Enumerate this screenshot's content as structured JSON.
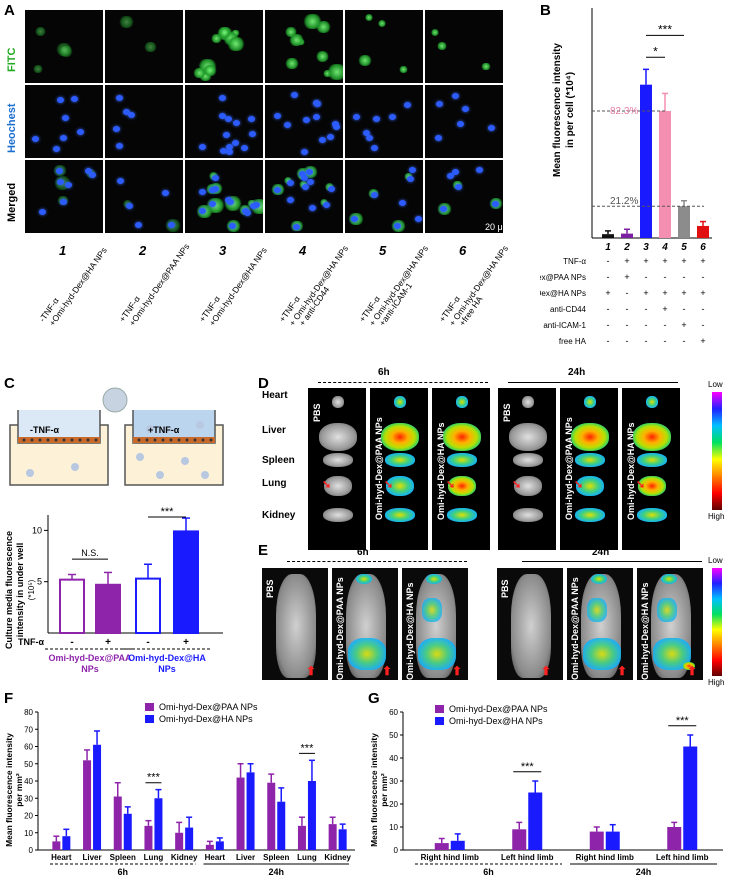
{
  "panel_labels": {
    "a": "A",
    "b": "B",
    "c": "C",
    "d": "D",
    "e": "E",
    "f": "F",
    "g": "G"
  },
  "panelA": {
    "rows": [
      "FITC",
      "Heochest",
      "Merged"
    ],
    "row_colors": [
      "#22aa22",
      "#1d6fd1",
      "#000000"
    ],
    "scale_bar": "20 μm",
    "columns": [
      {
        "num": "1",
        "l1": "-TNF-α",
        "l2": "+Omi-hyd-Dex@HA NPs",
        "l3": ""
      },
      {
        "num": "2",
        "l1": "+TNF-α",
        "l2": "+Omi-hyd-Dex@PAA NPs",
        "l3": ""
      },
      {
        "num": "3",
        "l1": "+TNF-α",
        "l2": "+Omi-hyd-Dex@HA NPs",
        "l3": ""
      },
      {
        "num": "4",
        "l1": "+TNF-α",
        "l2": "+ Omi-hyd-Dex@HA NPs",
        "l3": "+ anti-CD44"
      },
      {
        "num": "5",
        "l1": "+TNF-α",
        "l2": "+ Omi-hyd-Dex@HA NPs",
        "l3": "+anti-ICAM-1"
      },
      {
        "num": "6",
        "l1": "+TNF-α",
        "l2": "+ Omi-hyd-Dex@HA NPs",
        "l3": "+free HA"
      }
    ]
  },
  "chart_data": [
    {
      "id": "B",
      "type": "bar",
      "ylabel_line1": "Mean fluorescence intensity",
      "ylabel_line2": "in per cell  (*10⁴)",
      "categories": [
        "1",
        "2",
        "3",
        "4",
        "5",
        "6"
      ],
      "values": [
        0.35,
        0.4,
        14.0,
        11.6,
        2.9,
        1.1
      ],
      "errors": [
        0.3,
        0.4,
        1.4,
        1.6,
        0.5,
        0.4
      ],
      "colors": [
        "#111111",
        "#7b1fa2",
        "#1a1aff",
        "#f48fb1",
        "#8c8c8c",
        "#e01010"
      ],
      "ylim": [
        0,
        21
      ],
      "annotations": {
        "p82": "82.3%",
        "p21": "21.2%",
        "sig1": "*",
        "sig2": "***"
      },
      "conditions": [
        {
          "name": "TNF-α",
          "signs": [
            "-",
            "+",
            "+",
            "+",
            "+",
            "+"
          ]
        },
        {
          "name": "Omi-hyd-Dex@PAA NPs",
          "signs": [
            "-",
            "+",
            "-",
            "-",
            "-",
            "-"
          ]
        },
        {
          "name": "Omi-hyd-Dex@HA NPs",
          "signs": [
            "+",
            "-",
            "+",
            "+",
            "+",
            "+"
          ]
        },
        {
          "name": "anti-CD44",
          "signs": [
            "-",
            "-",
            "-",
            "+",
            "-",
            "-"
          ]
        },
        {
          "name": "anti-ICAM-1",
          "signs": [
            "-",
            "-",
            "-",
            "-",
            "+",
            "-"
          ]
        },
        {
          "name": "free HA",
          "signs": [
            "-",
            "-",
            "-",
            "-",
            "-",
            "+"
          ]
        }
      ]
    },
    {
      "id": "C",
      "type": "bar",
      "ylabel_line1": "Culture media fluorescence",
      "ylabel_line2": "intensity in under well",
      "ylabel_line3": "(*10⁵)",
      "values": [
        5.2,
        4.7,
        5.3,
        9.9
      ],
      "errors": [
        0.5,
        1.2,
        1.4,
        1.3
      ],
      "ticks": [
        "5",
        "10"
      ],
      "ylim": [
        0,
        11.5
      ],
      "tnf_label": "TNF-α",
      "signs": [
        "-",
        "+",
        "-",
        "+"
      ],
      "groups": [
        {
          "name": "Omi-hyd-Dex@PAA",
          "name2": "NPs",
          "color": "#8e24aa"
        },
        {
          "name": "Omi-hyd-Dex@HA",
          "name2": "NPs",
          "color": "#1a1aff"
        }
      ],
      "sig": [
        "N.S.",
        "***"
      ]
    },
    {
      "id": "F",
      "type": "bar",
      "ylabel_line1": "Mean fluorescence intensity",
      "ylabel_line2": "per mm²",
      "categories": [
        "Heart",
        "Liver",
        "Spleen",
        "Lung",
        "Kidney",
        "Heart",
        "Liver",
        "Spleen",
        "Lung",
        "Kidney"
      ],
      "timepoints": [
        "6h",
        "24h"
      ],
      "series": [
        {
          "name": "Omi-hyd-Dex@PAA NPs",
          "color": "#8e24aa",
          "values": [
            5,
            52,
            31,
            14,
            10,
            3,
            42,
            39,
            14,
            15
          ],
          "errors": [
            3,
            6,
            8,
            3,
            6,
            2,
            8,
            5,
            5,
            4
          ]
        },
        {
          "name": "Omi-hyd-Dex@HA NPs",
          "color": "#1a1aff",
          "values": [
            8,
            61,
            21,
            30,
            13,
            5,
            45,
            28,
            40,
            12
          ],
          "errors": [
            4,
            8,
            4,
            5,
            6,
            2,
            5,
            8,
            12,
            3
          ]
        }
      ],
      "ticks": [
        "0",
        "10",
        "20",
        "30",
        "40",
        "50",
        "60",
        "70",
        "80"
      ],
      "ylim": [
        0,
        80
      ],
      "sig": [
        "***",
        "***"
      ]
    },
    {
      "id": "G",
      "type": "bar",
      "ylabel_line1": "Mean fluorescence intensity",
      "ylabel_line2": "per mm²",
      "categories": [
        "Right hind limb",
        "Left hind limb",
        "Right hind limb",
        "Left hind limb"
      ],
      "timepoints": [
        "6h",
        "24h"
      ],
      "series": [
        {
          "name": "Omi-hyd-Dex@PAA NPs",
          "color": "#8e24aa",
          "values": [
            3,
            9,
            8,
            10
          ],
          "errors": [
            2,
            3,
            2,
            2
          ]
        },
        {
          "name": "Omi-hyd-Dex@HA NPs",
          "color": "#1a1aff",
          "values": [
            4,
            25,
            8,
            45
          ],
          "errors": [
            3,
            5,
            3,
            5
          ]
        }
      ],
      "ticks": [
        "0",
        "10",
        "20",
        "30",
        "40",
        "50",
        "60"
      ],
      "ylim": [
        0,
        60
      ],
      "sig": [
        "***",
        "***"
      ]
    }
  ],
  "panelC_diagram": {
    "minus": "-TNF-α",
    "plus": "+TNF-α"
  },
  "panelD": {
    "times": [
      "6h",
      "24h"
    ],
    "organs": [
      "Heart",
      "Liver",
      "Spleen",
      "Lung",
      "Kidney"
    ],
    "columns": [
      "PBS",
      "Omi-hyd-Dex@PAA NPs",
      "Omi-hyd-Dex@HA NPs"
    ],
    "scale_low": "Low",
    "scale_high": "High"
  },
  "panelE": {
    "times": [
      "6h",
      "24h"
    ],
    "columns": [
      "PBS",
      "Omi-hyd-Dex@PAA NPs",
      "Omi-hyd-Dex@HA NPs"
    ],
    "scale_low": "Low",
    "scale_high": "High"
  }
}
